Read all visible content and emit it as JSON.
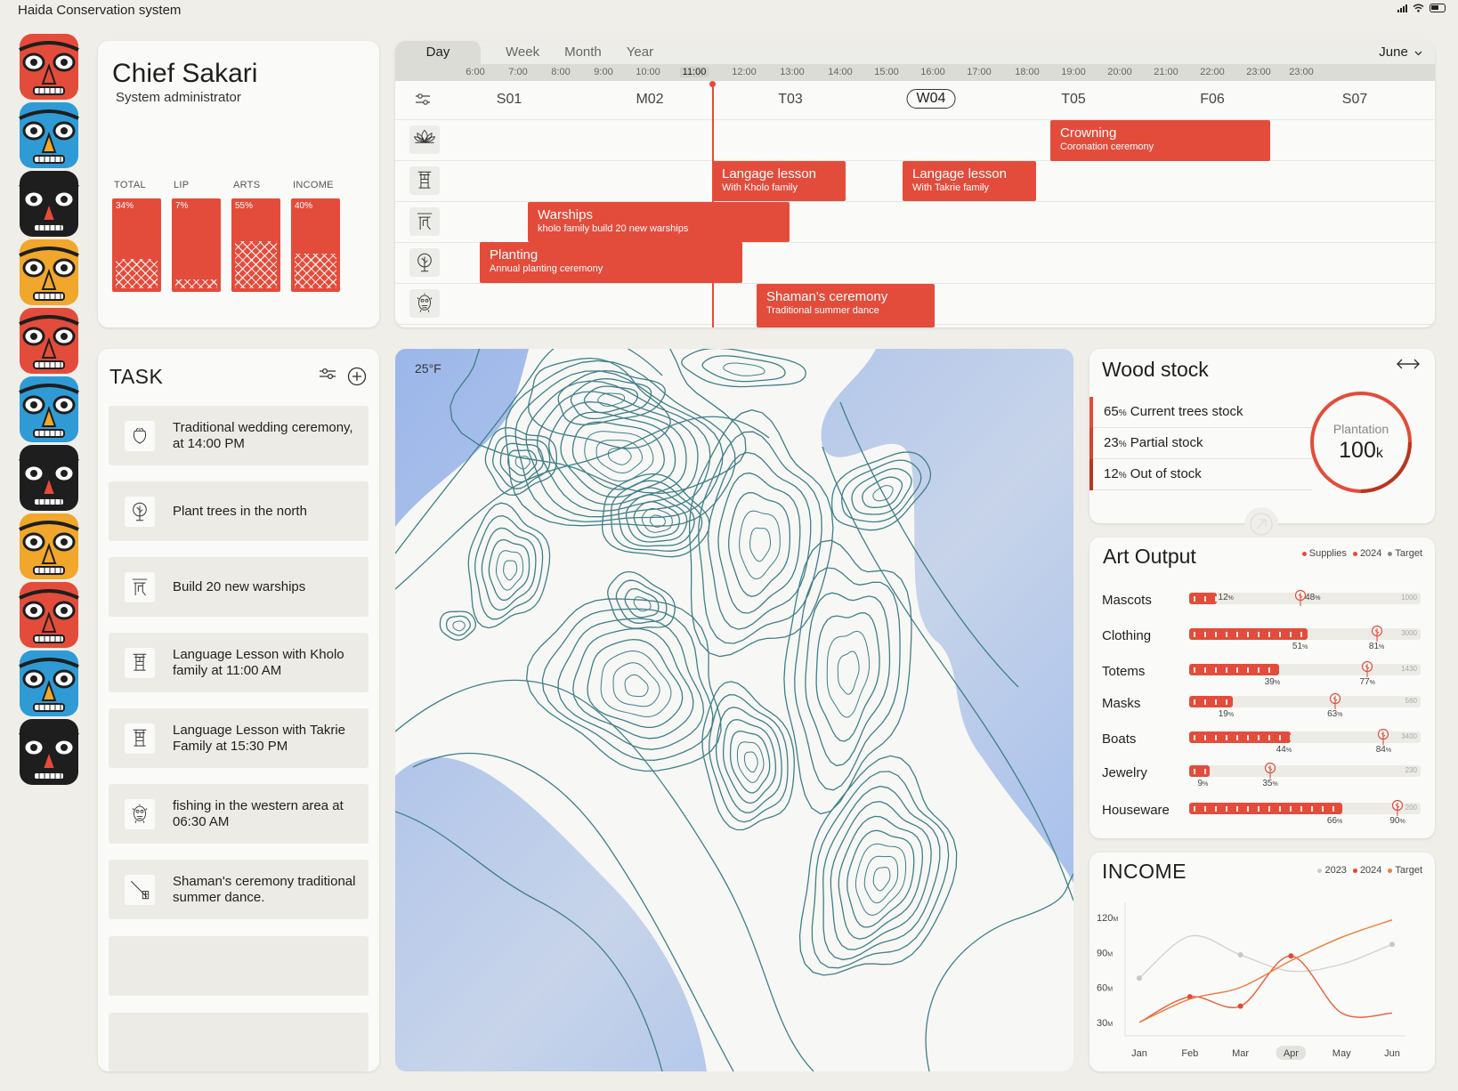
{
  "app": {
    "title": "Haida Conservation system"
  },
  "profile": {
    "name": "Chief Sakari",
    "role": "System administrator",
    "stats": [
      {
        "label": "TOTAL",
        "value": "34%",
        "fill": 0.34
      },
      {
        "label": "LIP",
        "value": "7%",
        "fill": 0.07
      },
      {
        "label": "ARTS",
        "value": "55%",
        "fill": 0.55
      },
      {
        "label": "INCOME",
        "value": "40%",
        "fill": 0.4
      }
    ]
  },
  "schedule": {
    "tabs": [
      "Day",
      "Week",
      "Month",
      "Year"
    ],
    "active_tab": "Day",
    "month": "June",
    "current_hour": "11:00",
    "hours": [
      "6:00",
      "7:00",
      "8:00",
      "9:00",
      "10:00",
      "11:00",
      "12:00",
      "13:00",
      "14:00",
      "15:00",
      "16:00",
      "17:00",
      "18:00",
      "19:00",
      "20:00",
      "21:00",
      "22:00",
      "23:00",
      "23:00"
    ],
    "days": [
      "S01",
      "M02",
      "T03",
      "W04",
      "T05",
      "F06",
      "S07"
    ],
    "active_day": "W04",
    "lanes": [
      "lotus-icon",
      "torii-icon",
      "gate-icon",
      "tree-icon",
      "mask-icon"
    ],
    "events": [
      {
        "title": "Crowning",
        "subtitle": "Coronation ceremony"
      },
      {
        "title": "Langage lesson",
        "subtitle": "With Kholo family"
      },
      {
        "title": "Langage lesson",
        "subtitle": "With Takrie family"
      },
      {
        "title": "Warships",
        "subtitle": "kholo family build 20 new warships"
      },
      {
        "title": "Planting",
        "subtitle": "Annual planting ceremony"
      },
      {
        "title": "Shaman's ceremony",
        "subtitle": "Traditional summer dance"
      }
    ]
  },
  "tasks": {
    "title": "TASK",
    "items": [
      {
        "text": "Traditional wedding ceremony, at 14:00 PM",
        "icon": "pot-icon"
      },
      {
        "text": "Plant trees in the north",
        "icon": "tree-icon"
      },
      {
        "text": "Build 20 new warships",
        "icon": "gate-icon"
      },
      {
        "text": "Language Lesson with Kholo family at 11:00 AM",
        "icon": "torii-icon"
      },
      {
        "text": "Language Lesson with Takrie Family at 15:30 PM",
        "icon": "torii-icon"
      },
      {
        "text": "fishing in the western area at 06:30 AM",
        "icon": "mask-icon"
      },
      {
        "text": "Shaman's ceremony traditional summer dance.",
        "icon": "staff-icon"
      }
    ]
  },
  "map": {
    "temperature": "25°F"
  },
  "wood_stock": {
    "title": "Wood stock",
    "rows": [
      {
        "pct": "65",
        "unit": "%",
        "label": "Current trees stock",
        "color": "#e34c3b"
      },
      {
        "pct": "23",
        "unit": "%",
        "label": "Partial stock",
        "color": "#d2452f"
      },
      {
        "pct": "12",
        "unit": "%",
        "label": "Out of stock",
        "color": "#b8361f"
      }
    ],
    "plantation_label": "Plantation",
    "plantation_value": "100",
    "plantation_unit": "k"
  },
  "art_output": {
    "title": "Art Output",
    "legend": [
      "Supplies",
      "2024",
      "Target"
    ],
    "rows": [
      {
        "label": "Mascots",
        "current": 12,
        "target": 48,
        "max": "1000"
      },
      {
        "label": "Clothing",
        "current": 51,
        "target": 81,
        "max": "3000"
      },
      {
        "label": "Totems",
        "current": 39,
        "target": 77,
        "max": "1430"
      },
      {
        "label": "Masks",
        "current": 19,
        "target": 63,
        "max": "560"
      },
      {
        "label": "Boats",
        "current": 44,
        "target": 84,
        "max": "3400"
      },
      {
        "label": "Jewelry",
        "current": 9,
        "target": 35,
        "max": "230"
      },
      {
        "label": "Houseware",
        "current": 66,
        "target": 90,
        "max": "200"
      }
    ]
  },
  "income": {
    "title": "INCOME",
    "legend": [
      "2023",
      "2024",
      "Target"
    ],
    "chart_data": {
      "type": "line",
      "categories": [
        "Jan",
        "Feb",
        "Mar",
        "Apr",
        "May",
        "Jun"
      ],
      "highlight": "Apr",
      "y_ticks": [
        "120",
        "90",
        "60",
        "30"
      ],
      "y_unit": "M",
      "ylim": [
        20,
        130
      ],
      "series": [
        {
          "name": "2023",
          "color": "#d3d3cf",
          "values": [
            68,
            104,
            88,
            74,
            80,
            97
          ]
        },
        {
          "name": "2024",
          "color": "#e85d3c",
          "values": [
            30,
            52,
            44,
            87,
            38,
            38
          ]
        },
        {
          "name": "Target",
          "color": "#f07a3a",
          "values": [
            30,
            50,
            60,
            83,
            103,
            118
          ]
        }
      ]
    },
    "colors": {
      "c2023": "#d3d3cf",
      "c2024": "#e04a36",
      "target": "#f07a3a"
    }
  }
}
